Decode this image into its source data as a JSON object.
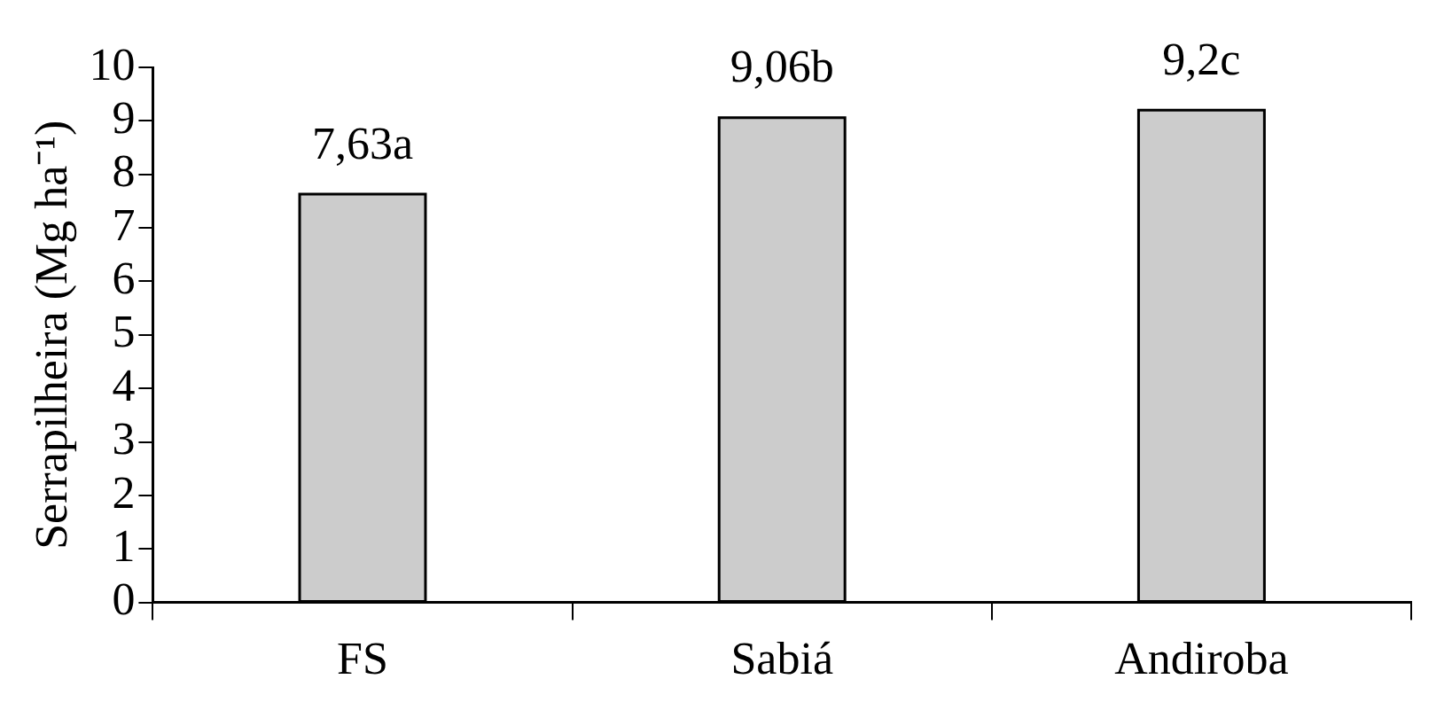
{
  "chart_data": {
    "type": "bar",
    "ylabel": "Serrapilheira (Mg ha⁻¹)",
    "categories": [
      "FS",
      "Sabiá",
      "Andiroba"
    ],
    "values": [
      7.63,
      9.06,
      9.2
    ],
    "value_labels": [
      "7,63a",
      "9,06b",
      "9,2c"
    ],
    "color": "#cccccc",
    "ylim": [
      0,
      10
    ],
    "yticks": [
      0,
      1,
      2,
      3,
      4,
      5,
      6,
      7,
      8,
      9,
      10
    ],
    "grid": false,
    "legend": false
  }
}
